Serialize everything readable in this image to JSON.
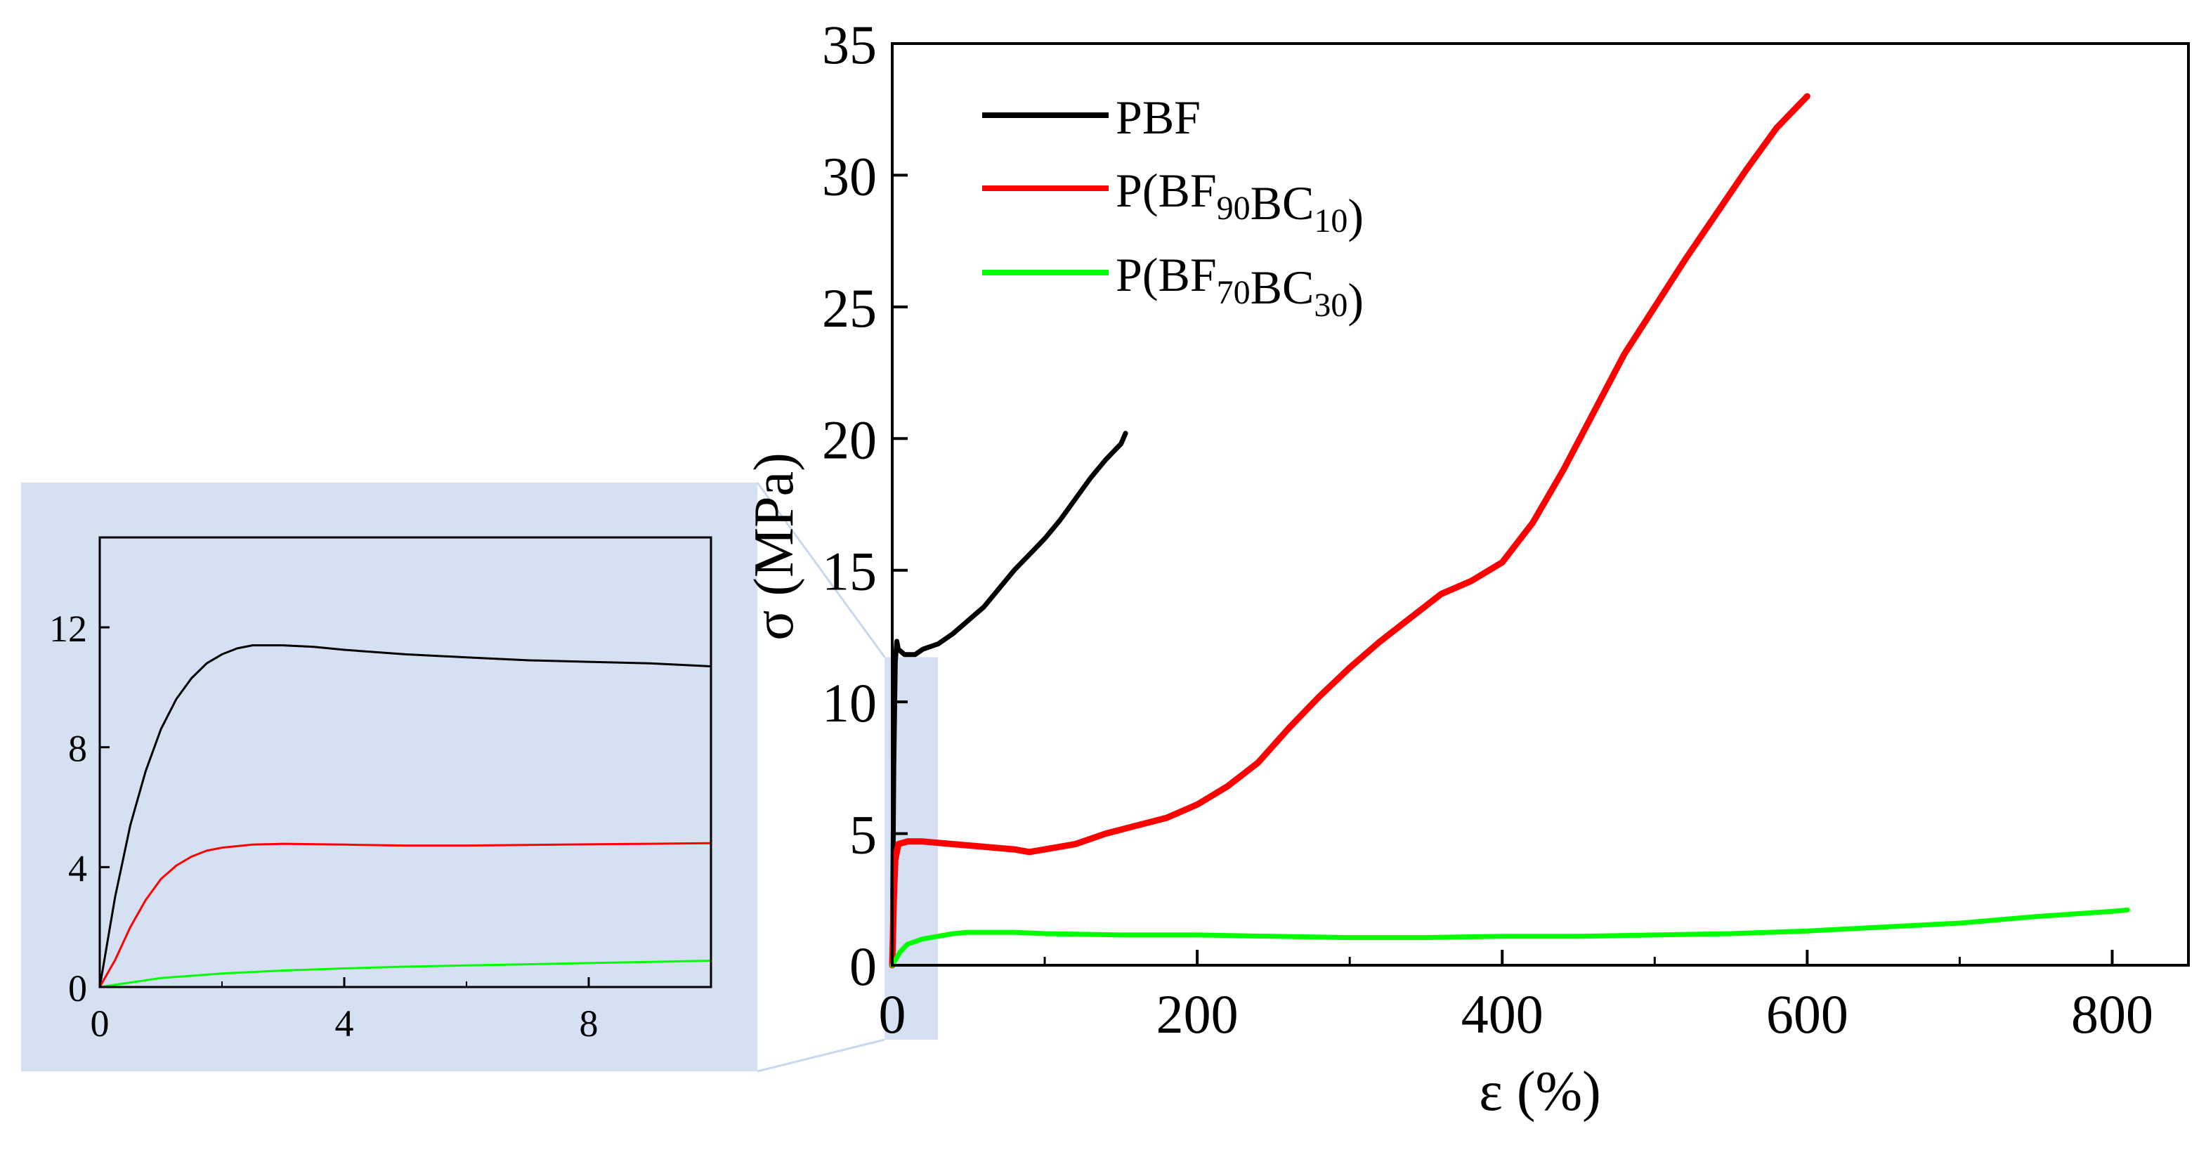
{
  "chart_data": [
    {
      "id": "main",
      "type": "line",
      "xlabel": "ε (%)",
      "ylabel": "σ (MPa)",
      "xlim": [
        0,
        850
      ],
      "ylim": [
        0,
        35
      ],
      "xticks": [
        0,
        200,
        400,
        600,
        800
      ],
      "yticks": [
        0,
        5,
        10,
        15,
        20,
        25,
        30,
        35
      ],
      "xtick_labels": [
        "0",
        "200",
        "400",
        "600",
        "800"
      ],
      "ytick_labels": [
        "0",
        "5",
        "10",
        "15",
        "20",
        "25",
        "30",
        "35"
      ],
      "legend_position": "top-left",
      "highlight_region": {
        "x": [
          -5,
          30
        ],
        "y": [
          0,
          11.7
        ]
      },
      "series": [
        {
          "name": "PBF",
          "legend_main": "PBF",
          "legend_sub1": "",
          "legend_mid": "",
          "legend_sub2": "",
          "legend_tail": "",
          "color": "#000000",
          "x": [
            0,
            1,
            2,
            3,
            4,
            6,
            8,
            10,
            15,
            20,
            30,
            40,
            50,
            60,
            70,
            80,
            90,
            100,
            110,
            120,
            130,
            140,
            150,
            153
          ],
          "y": [
            0,
            7.5,
            11.5,
            12.3,
            12.0,
            11.9,
            11.8,
            11.8,
            11.8,
            12.0,
            12.2,
            12.6,
            13.1,
            13.6,
            14.3,
            15.0,
            15.6,
            16.2,
            16.9,
            17.7,
            18.5,
            19.2,
            19.8,
            20.2
          ]
        },
        {
          "name": "P(BF90BC10)",
          "legend_main": "P(BF",
          "legend_sub1": "90",
          "legend_mid": "BC",
          "legend_sub2": "10",
          "legend_tail": ")",
          "color": "#ff0000",
          "x": [
            0,
            1,
            2,
            4,
            10,
            20,
            40,
            60,
            80,
            90,
            100,
            120,
            140,
            160,
            180,
            200,
            220,
            240,
            260,
            280,
            300,
            320,
            340,
            360,
            380,
            400,
            420,
            440,
            460,
            480,
            500,
            520,
            540,
            560,
            580,
            600
          ],
          "y": [
            0,
            2.5,
            4.0,
            4.6,
            4.7,
            4.7,
            4.6,
            4.5,
            4.4,
            4.3,
            4.4,
            4.6,
            5.0,
            5.3,
            5.6,
            6.1,
            6.8,
            7.7,
            9.0,
            10.2,
            11.3,
            12.3,
            13.2,
            14.1,
            14.6,
            15.3,
            16.8,
            18.8,
            21.0,
            23.2,
            25.0,
            26.8,
            28.5,
            30.2,
            31.8,
            33.0
          ]
        },
        {
          "name": "P(BF70BC30)",
          "legend_main": "P(BF",
          "legend_sub1": "70",
          "legend_mid": "BC",
          "legend_sub2": "30",
          "legend_tail": ")",
          "color": "#00ff00",
          "x": [
            0,
            2,
            5,
            10,
            20,
            30,
            40,
            50,
            60,
            80,
            100,
            150,
            200,
            250,
            300,
            350,
            400,
            450,
            500,
            550,
            600,
            650,
            700,
            750,
            800,
            810
          ],
          "y": [
            0,
            0.2,
            0.5,
            0.8,
            1.0,
            1.1,
            1.2,
            1.25,
            1.25,
            1.25,
            1.2,
            1.15,
            1.15,
            1.1,
            1.05,
            1.05,
            1.1,
            1.1,
            1.15,
            1.2,
            1.3,
            1.45,
            1.6,
            1.85,
            2.05,
            2.1
          ]
        }
      ]
    },
    {
      "id": "inset",
      "type": "line",
      "xlabel": "",
      "ylabel": "",
      "xlim": [
        0,
        10
      ],
      "ylim": [
        0,
        15
      ],
      "xticks": [
        0,
        4,
        8
      ],
      "yticks": [
        0,
        4,
        8,
        12
      ],
      "xtick_labels": [
        "0",
        "4",
        "8"
      ],
      "ytick_labels": [
        "0",
        "4",
        "8",
        "12"
      ],
      "series": [
        {
          "name": "PBF",
          "color": "#000000",
          "x": [
            0,
            0.25,
            0.5,
            0.75,
            1.0,
            1.25,
            1.5,
            1.75,
            2.0,
            2.25,
            2.5,
            2.75,
            3.0,
            3.5,
            4.0,
            5.0,
            6.0,
            7.0,
            8.0,
            9.0,
            10.0
          ],
          "y": [
            0,
            3.0,
            5.4,
            7.2,
            8.6,
            9.6,
            10.3,
            10.8,
            11.1,
            11.3,
            11.4,
            11.4,
            11.4,
            11.35,
            11.25,
            11.1,
            11.0,
            10.9,
            10.85,
            10.8,
            10.7
          ]
        },
        {
          "name": "P(BF90BC10)",
          "color": "#ff0000",
          "x": [
            0,
            0.25,
            0.5,
            0.75,
            1.0,
            1.25,
            1.5,
            1.75,
            2.0,
            2.5,
            3.0,
            4.0,
            5.0,
            6.0,
            7.0,
            8.0,
            9.0,
            10.0
          ],
          "y": [
            0,
            0.9,
            2.0,
            2.9,
            3.6,
            4.05,
            4.35,
            4.55,
            4.65,
            4.75,
            4.78,
            4.75,
            4.72,
            4.72,
            4.74,
            4.76,
            4.78,
            4.8
          ]
        },
        {
          "name": "P(BF70BC30)",
          "color": "#00ff00",
          "x": [
            0,
            0.5,
            1,
            2,
            3,
            4,
            5,
            6,
            7,
            8,
            9,
            10
          ],
          "y": [
            0,
            0.15,
            0.3,
            0.45,
            0.55,
            0.62,
            0.68,
            0.72,
            0.76,
            0.8,
            0.84,
            0.88
          ]
        }
      ]
    }
  ],
  "colors": {
    "highlight": "#d5e1f3",
    "connector": "#c9d8ee"
  }
}
